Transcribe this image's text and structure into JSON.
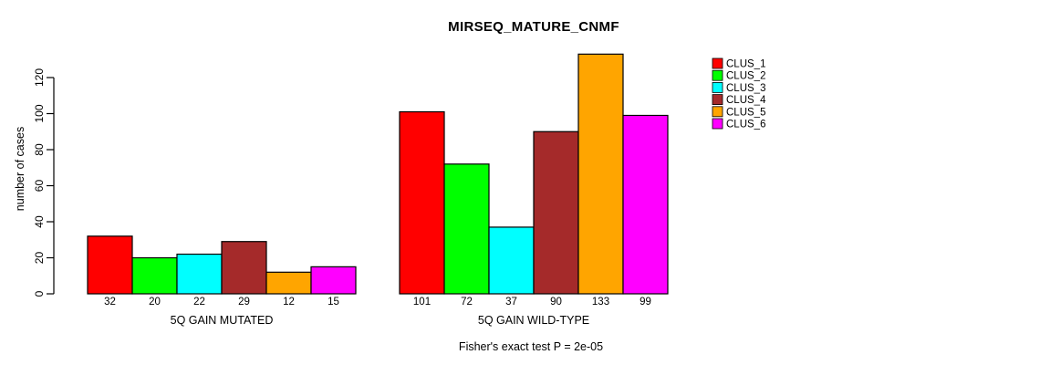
{
  "page": {
    "background_color": "#FFFFFF",
    "text_color": "#000000"
  },
  "chart_data": {
    "type": "bar",
    "title": "MIRSEQ_MATURE_CNMF",
    "subtitle": "Fisher's exact test P = 2e-05",
    "xlabel": "",
    "ylabel": "number of cases",
    "yticks": [
      0,
      20,
      40,
      60,
      80,
      100,
      120
    ],
    "ylim": [
      0,
      120
    ],
    "grid": false,
    "bar_value_labels_shown": true,
    "bar_border_color": "#000000",
    "categories": [
      "5Q GAIN MUTATED",
      "5Q GAIN WILD-TYPE"
    ],
    "series": [
      {
        "name": "CLUS_1",
        "color": "#FF0000",
        "values": [
          32,
          101
        ]
      },
      {
        "name": "CLUS_2",
        "color": "#00FF00",
        "values": [
          20,
          72
        ]
      },
      {
        "name": "CLUS_3",
        "color": "#00FFFF",
        "values": [
          22,
          37
        ]
      },
      {
        "name": "CLUS_4",
        "color": "#A52A2A",
        "values": [
          29,
          90
        ]
      },
      {
        "name": "CLUS_5",
        "color": "#FFA500",
        "values": [
          12,
          133
        ]
      },
      {
        "name": "CLUS_6",
        "color": "#FF00FF",
        "values": [
          15,
          99
        ]
      }
    ],
    "legend": {
      "position": "right",
      "entries": [
        "CLUS_1",
        "CLUS_2",
        "CLUS_3",
        "CLUS_4",
        "CLUS_5",
        "CLUS_6"
      ]
    }
  }
}
